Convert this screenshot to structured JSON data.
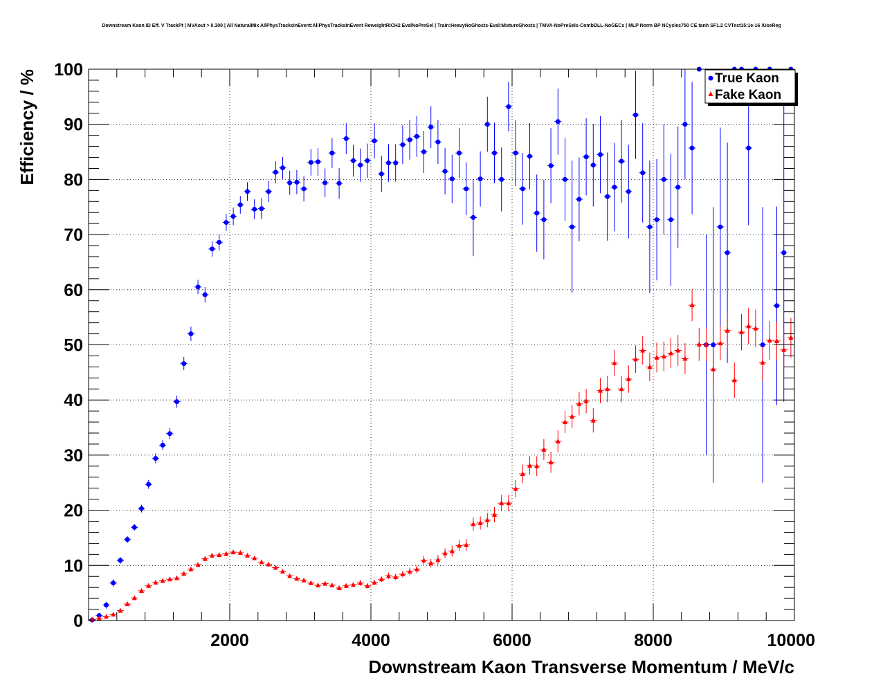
{
  "chart_data": {
    "type": "scatter",
    "title": "Downstream Kaon ID Eff. V TrackPt | MVAout > 0.300 | All NaturalMix AllPhysTracksInEvent:AllPhysTracksInEvent ReweightRICH2 EvalNoPreSel | Train:HeavyNoGhosts-Eval:MixtureGhosts | TMVA-NoPreSels-CombDLL-NoGECs | MLP Norm BP NCycles750 CE tanh SF1.2 CVTest15:1e-16 !UseReg",
    "xlabel": "Downstream Kaon Transverse Momentum / MeV/c",
    "ylabel": "Efficiency / %",
    "xlim": [
      0,
      10000
    ],
    "ylim": [
      0,
      100
    ],
    "xticks": [
      "2000",
      "4000",
      "6000",
      "8000",
      "10000"
    ],
    "yticks": [
      "0",
      "10",
      "20",
      "30",
      "40",
      "50",
      "60",
      "70",
      "80",
      "90",
      "100"
    ],
    "grid": true,
    "legend_position": "top-right",
    "series": [
      {
        "name": "True Kaon",
        "color": "#0000ff",
        "marker": "circle",
        "x": [
          50,
          150,
          250,
          350,
          450,
          550,
          650,
          750,
          850,
          950,
          1050,
          1150,
          1250,
          1350,
          1450,
          1550,
          1650,
          1750,
          1850,
          1950,
          2050,
          2150,
          2250,
          2350,
          2450,
          2550,
          2650,
          2750,
          2850,
          2950,
          3050,
          3150,
          3250,
          3350,
          3450,
          3550,
          3650,
          3750,
          3850,
          3950,
          4050,
          4150,
          4250,
          4350,
          4450,
          4550,
          4650,
          4750,
          4850,
          4950,
          5050,
          5150,
          5250,
          5350,
          5450,
          5550,
          5650,
          5750,
          5850,
          5950,
          6050,
          6150,
          6250,
          6350,
          6450,
          6550,
          6650,
          6750,
          6850,
          6950,
          7050,
          7150,
          7250,
          7350,
          7450,
          7550,
          7650,
          7750,
          7850,
          7950,
          8050,
          8150,
          8250,
          8350,
          8450,
          8550,
          8650,
          8750,
          8850,
          8950,
          9050,
          9150,
          9250,
          9350,
          9450,
          9550,
          9650,
          9750,
          9850,
          9950
        ],
        "y": [
          0.1,
          0.9,
          2.8,
          6.8,
          10.9,
          14.7,
          16.9,
          20.3,
          24.7,
          29.4,
          31.8,
          33.9,
          39.7,
          46.6,
          52.0,
          60.5,
          59.1,
          67.4,
          68.6,
          72.2,
          73.3,
          75.4,
          77.8,
          74.6,
          74.7,
          77.8,
          81.3,
          82.1,
          79.4,
          79.5,
          78.3,
          83.1,
          83.2,
          79.4,
          84.8,
          79.3,
          87.4,
          83.4,
          82.6,
          83.4,
          87.0,
          81.0,
          83.0,
          83.0,
          86.3,
          87.2,
          87.8,
          85.0,
          89.5,
          86.8,
          81.5,
          80.1,
          84.8,
          78.3,
          73.1,
          80.1,
          90.0,
          84.8,
          80.0,
          93.2,
          84.8,
          78.3,
          84.2,
          73.9,
          72.7,
          82.5,
          90.5,
          80.0,
          71.4,
          76.4,
          84.1,
          82.6,
          84.5,
          76.9,
          78.6,
          83.3,
          77.8,
          91.7,
          81.2,
          71.4,
          72.7,
          80.0,
          72.7,
          78.6,
          90.0,
          85.7,
          100,
          50.0,
          50.0,
          71.4,
          66.7,
          100,
          100,
          85.7,
          100,
          50.0,
          100,
          57.1,
          66.7,
          100
        ],
        "yerr": [
          0.3,
          0.5,
          0.6,
          0.7,
          0.6,
          0.6,
          0.6,
          0.7,
          0.8,
          0.9,
          0.9,
          1.0,
          1.1,
          1.2,
          1.3,
          1.3,
          1.4,
          1.4,
          1.5,
          1.5,
          1.6,
          1.6,
          1.7,
          1.8,
          1.9,
          1.9,
          2.0,
          2.0,
          2.2,
          2.2,
          2.3,
          2.4,
          2.5,
          2.6,
          2.7,
          2.8,
          2.8,
          2.9,
          3.0,
          3.1,
          3.2,
          3.3,
          3.4,
          3.4,
          3.5,
          3.6,
          3.7,
          3.8,
          3.8,
          4.0,
          4.2,
          4.4,
          4.5,
          4.8,
          7.0,
          5.0,
          5.0,
          5.5,
          5.8,
          4.5,
          6.0,
          6.5,
          6.0,
          7.0,
          7.2,
          6.8,
          6.0,
          7.5,
          12.0,
          7.6,
          7.0,
          7.5,
          7.0,
          8.0,
          8.0,
          7.5,
          8.5,
          8.0,
          9.0,
          12.0,
          11.0,
          10.0,
          12.0,
          11.0,
          10.0,
          12.0,
          0,
          20.0,
          25.0,
          18.0,
          20.0,
          0,
          0,
          14.0,
          0,
          25.0,
          0,
          18.0,
          27.0,
          0
        ]
      },
      {
        "name": "Fake Kaon",
        "color": "#ff0000",
        "marker": "triangle",
        "x": [
          50,
          150,
          250,
          350,
          450,
          550,
          650,
          750,
          850,
          950,
          1050,
          1150,
          1250,
          1350,
          1450,
          1550,
          1650,
          1750,
          1850,
          1950,
          2050,
          2150,
          2250,
          2350,
          2450,
          2550,
          2650,
          2750,
          2850,
          2950,
          3050,
          3150,
          3250,
          3350,
          3450,
          3550,
          3650,
          3750,
          3850,
          3950,
          4050,
          4150,
          4250,
          4350,
          4450,
          4550,
          4650,
          4750,
          4850,
          4950,
          5050,
          5150,
          5250,
          5350,
          5450,
          5550,
          5650,
          5750,
          5850,
          5950,
          6050,
          6150,
          6250,
          6350,
          6450,
          6550,
          6650,
          6750,
          6850,
          6950,
          7050,
          7150,
          7250,
          7350,
          7450,
          7550,
          7650,
          7750,
          7850,
          7950,
          8050,
          8150,
          8250,
          8350,
          8450,
          8550,
          8650,
          8750,
          8850,
          8950,
          9050,
          9150,
          9250,
          9350,
          9450,
          9550,
          9650,
          9750,
          9850,
          9950
        ],
        "y": [
          0.2,
          0.4,
          0.7,
          1.1,
          1.8,
          3.0,
          4.1,
          5.4,
          6.3,
          6.9,
          7.2,
          7.5,
          7.7,
          8.5,
          9.3,
          10.1,
          11.2,
          11.8,
          11.9,
          12.1,
          12.4,
          12.3,
          11.8,
          11.3,
          10.6,
          10.2,
          9.6,
          8.9,
          8.1,
          7.6,
          7.3,
          6.8,
          6.4,
          6.7,
          6.4,
          5.9,
          6.3,
          6.5,
          6.8,
          6.3,
          6.9,
          7.5,
          8.1,
          7.9,
          8.4,
          8.9,
          9.3,
          10.9,
          10.4,
          11.0,
          12.2,
          12.6,
          13.6,
          13.7,
          17.5,
          17.7,
          18.2,
          19.2,
          21.3,
          21.3,
          23.9,
          26.6,
          28.1,
          28.0,
          31.0,
          28.7,
          32.5,
          36.0,
          37.0,
          39.3,
          39.8,
          36.3,
          41.7,
          42.0,
          46.7,
          42.0,
          43.8,
          47.4,
          49.0,
          46.0,
          47.7,
          47.9,
          48.5,
          49.0,
          47.5,
          57.2,
          50.1,
          50.1,
          45.6,
          50.3,
          52.6,
          43.6,
          52.3,
          53.4,
          53.0,
          46.8,
          50.8,
          50.7,
          49.1,
          51.3
        ],
        "yerr": [
          0.1,
          0.1,
          0.2,
          0.2,
          0.3,
          0.3,
          0.4,
          0.4,
          0.4,
          0.4,
          0.4,
          0.4,
          0.4,
          0.4,
          0.4,
          0.4,
          0.4,
          0.4,
          0.4,
          0.4,
          0.4,
          0.4,
          0.4,
          0.4,
          0.4,
          0.4,
          0.4,
          0.4,
          0.4,
          0.4,
          0.4,
          0.4,
          0.4,
          0.4,
          0.4,
          0.4,
          0.4,
          0.4,
          0.5,
          0.5,
          0.5,
          0.5,
          0.6,
          0.6,
          0.6,
          0.7,
          0.7,
          0.8,
          0.8,
          0.9,
          0.9,
          1.0,
          1.0,
          1.1,
          1.2,
          1.2,
          1.3,
          1.4,
          1.5,
          1.5,
          1.6,
          1.7,
          1.7,
          1.8,
          1.9,
          1.9,
          2.0,
          2.0,
          2.1,
          2.1,
          2.2,
          2.2,
          2.3,
          2.4,
          2.4,
          2.4,
          2.5,
          2.5,
          2.6,
          2.6,
          2.7,
          2.7,
          2.7,
          2.8,
          2.8,
          2.9,
          3.0,
          3.0,
          3.1,
          3.1,
          3.2,
          3.2,
          3.3,
          3.3,
          3.4,
          3.4,
          3.5,
          3.5,
          3.6,
          3.6
        ]
      }
    ]
  }
}
